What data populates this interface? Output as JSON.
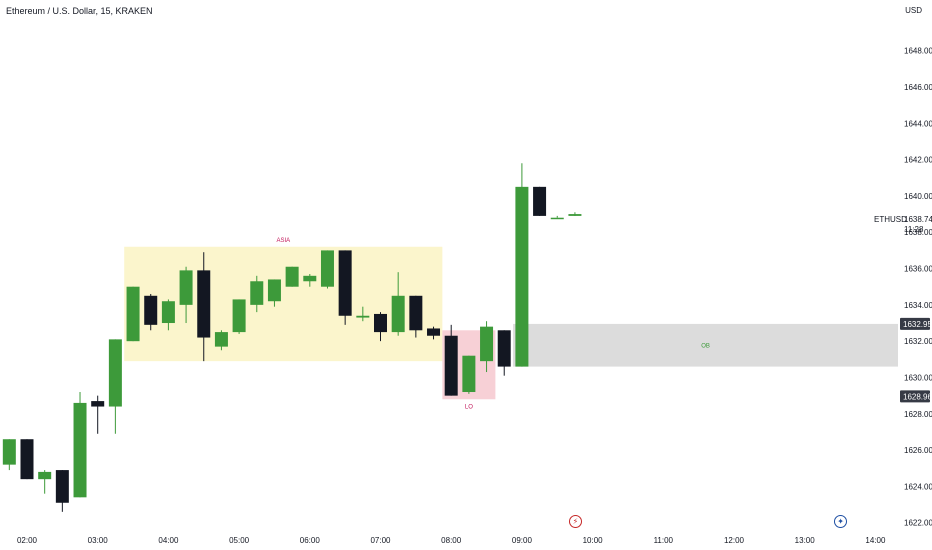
{
  "header": {
    "title": "Ethereum / U.S. Dollar, 15, KRAKEN",
    "currency": "USD"
  },
  "symbol": {
    "label": "ETHUSD",
    "price": "1638.74",
    "countdown": "11:28"
  },
  "colors": {
    "up": "#3d9a3a",
    "down": "#131722",
    "asia_zone": "#fbf5cc",
    "lo_zone": "#f7d0d6",
    "ob_zone": "#dcdcdc",
    "asia_text": "#c2185b",
    "lo_text": "#c2185b",
    "ob_text": "#3d9a3a"
  },
  "chart_data": {
    "type": "candlestick",
    "x_ticks": [
      "02:00",
      "03:00",
      "04:00",
      "05:00",
      "06:00",
      "07:00",
      "08:00",
      "09:00",
      "10:00",
      "11:00",
      "12:00",
      "13:00",
      "14:00"
    ],
    "y_ticks": [
      1622,
      1624,
      1626,
      1628,
      1630,
      1632,
      1634,
      1636,
      1638,
      1640,
      1642,
      1644,
      1646,
      1648
    ],
    "y_tick_labels": [
      "1622.00",
      "1624.00",
      "1626.00",
      "1628.00",
      "1630.00",
      "1632.00",
      "1634.00",
      "1636.00",
      "1638.00",
      "1640.00",
      "1642.00",
      "1644.00",
      "1646.00",
      "1648.00"
    ],
    "ylim": [
      1621.6,
      1649.8
    ],
    "candles": [
      {
        "t": "01:45",
        "o": 1625.2,
        "h": 1626.6,
        "l": 1624.9,
        "c": 1626.6
      },
      {
        "t": "02:00",
        "o": 1626.6,
        "h": 1626.6,
        "l": 1624.4,
        "c": 1624.4
      },
      {
        "t": "02:15",
        "o": 1624.4,
        "h": 1624.9,
        "l": 1623.6,
        "c": 1624.8
      },
      {
        "t": "02:30",
        "o": 1624.9,
        "h": 1624.9,
        "l": 1622.6,
        "c": 1623.1
      },
      {
        "t": "02:45",
        "o": 1623.4,
        "h": 1629.2,
        "l": 1623.4,
        "c": 1628.6
      },
      {
        "t": "03:00",
        "o": 1628.7,
        "h": 1629.0,
        "l": 1626.9,
        "c": 1628.4
      },
      {
        "t": "03:15",
        "o": 1628.4,
        "h": 1632.1,
        "l": 1626.9,
        "c": 1632.1
      },
      {
        "t": "03:30",
        "o": 1632.0,
        "h": 1635.0,
        "l": 1632.0,
        "c": 1635.0
      },
      {
        "t": "03:45",
        "o": 1634.5,
        "h": 1634.6,
        "l": 1632.6,
        "c": 1632.9
      },
      {
        "t": "04:00",
        "o": 1633.0,
        "h": 1634.3,
        "l": 1632.6,
        "c": 1634.2
      },
      {
        "t": "04:15",
        "o": 1634.0,
        "h": 1636.1,
        "l": 1633.0,
        "c": 1635.9
      },
      {
        "t": "04:30",
        "o": 1635.9,
        "h": 1636.9,
        "l": 1630.9,
        "c": 1632.2
      },
      {
        "t": "04:45",
        "o": 1631.7,
        "h": 1632.6,
        "l": 1631.5,
        "c": 1632.5
      },
      {
        "t": "05:00",
        "o": 1632.5,
        "h": 1634.3,
        "l": 1632.4,
        "c": 1634.3
      },
      {
        "t": "05:15",
        "o": 1634.0,
        "h": 1635.6,
        "l": 1633.6,
        "c": 1635.3
      },
      {
        "t": "05:30",
        "o": 1634.2,
        "h": 1635.4,
        "l": 1633.9,
        "c": 1635.4
      },
      {
        "t": "05:45",
        "o": 1635.0,
        "h": 1636.1,
        "l": 1635.0,
        "c": 1636.1
      },
      {
        "t": "06:00",
        "o": 1635.3,
        "h": 1635.7,
        "l": 1635.0,
        "c": 1635.6
      },
      {
        "t": "06:15",
        "o": 1635.0,
        "h": 1637.0,
        "l": 1634.9,
        "c": 1637.0
      },
      {
        "t": "06:30",
        "o": 1637.0,
        "h": 1637.0,
        "l": 1632.9,
        "c": 1633.4
      },
      {
        "t": "06:45",
        "o": 1633.3,
        "h": 1633.9,
        "l": 1633.1,
        "c": 1633.4
      },
      {
        "t": "07:00",
        "o": 1633.5,
        "h": 1633.6,
        "l": 1632.0,
        "c": 1632.5
      },
      {
        "t": "07:15",
        "o": 1632.5,
        "h": 1635.8,
        "l": 1632.3,
        "c": 1634.5
      },
      {
        "t": "07:30",
        "o": 1634.5,
        "h": 1634.5,
        "l": 1632.2,
        "c": 1632.6
      },
      {
        "t": "07:45",
        "o": 1632.7,
        "h": 1632.8,
        "l": 1632.1,
        "c": 1632.3
      },
      {
        "t": "08:00",
        "o": 1632.3,
        "h": 1632.9,
        "l": 1629.0,
        "c": 1629.0
      },
      {
        "t": "08:15",
        "o": 1629.2,
        "h": 1631.2,
        "l": 1629.1,
        "c": 1631.2
      },
      {
        "t": "08:30",
        "o": 1630.9,
        "h": 1633.1,
        "l": 1630.3,
        "c": 1632.8
      },
      {
        "t": "08:45",
        "o": 1632.6,
        "h": 1632.6,
        "l": 1630.1,
        "c": 1630.6
      },
      {
        "t": "09:00",
        "o": 1630.6,
        "h": 1641.8,
        "l": 1630.6,
        "c": 1640.5
      },
      {
        "t": "09:15",
        "o": 1640.5,
        "h": 1640.5,
        "l": 1638.9,
        "c": 1638.9
      },
      {
        "t": "09:30",
        "o": 1638.8,
        "h": 1638.9,
        "l": 1638.8,
        "c": 1638.8
      },
      {
        "t": "09:45",
        "o": 1638.9,
        "h": 1639.1,
        "l": 1638.9,
        "c": 1639.0
      }
    ],
    "zones": [
      {
        "label": "ASIA",
        "from": "03:30",
        "to": "07:45",
        "low": 1630.9,
        "high": 1637.2,
        "color": "#fbf5cc",
        "text_color": "#c2185b",
        "label_pos": "top"
      },
      {
        "label": "LO",
        "from": "08:00",
        "to": "08:30",
        "low": 1628.8,
        "high": 1632.6,
        "color": "#f7d0d6",
        "text_color": "#c2185b",
        "label_pos": "bottom"
      },
      {
        "label": "OB",
        "from": "09:00",
        "to": "14:30",
        "low": 1630.6,
        "high": 1632.95,
        "color": "#dcdcdc",
        "text_color": "#3d9a3a",
        "label_pos": "center"
      }
    ],
    "price_badges": [
      {
        "value": "1632.95",
        "y": 1632.95
      },
      {
        "value": "1628.96",
        "y": 1628.96
      }
    ],
    "last_price": 1638.74,
    "event_icons": [
      {
        "name": "lightning",
        "glyph": "⚡",
        "t": "09:45"
      },
      {
        "name": "us-flag",
        "glyph": "✦",
        "t": "13:30"
      }
    ]
  }
}
